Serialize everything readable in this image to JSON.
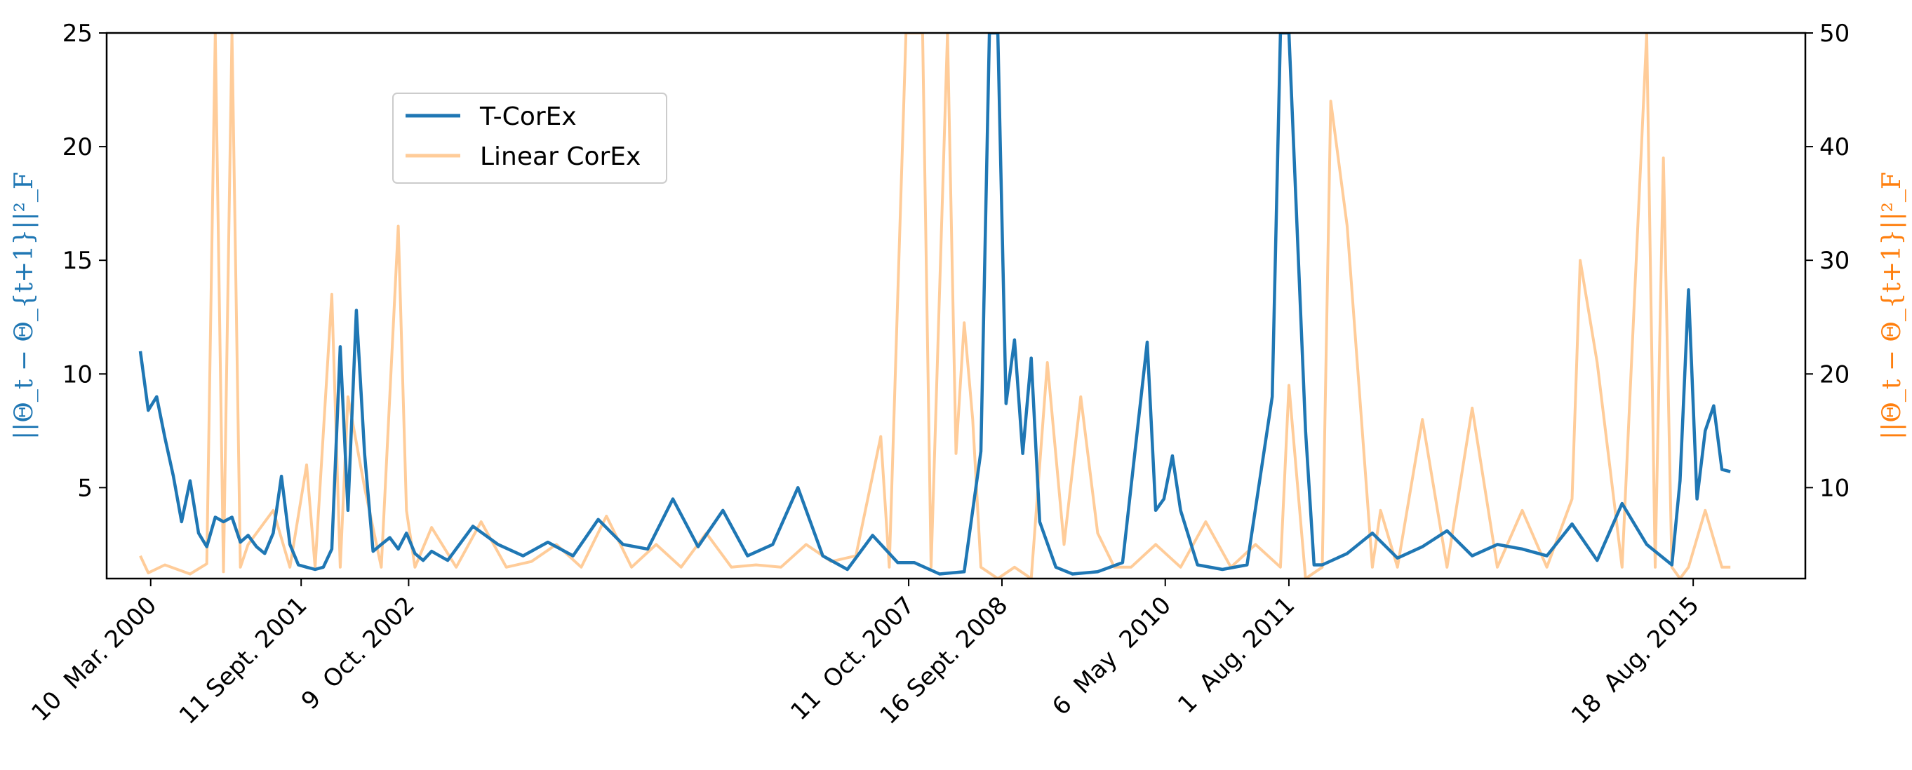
{
  "chart_data": {
    "type": "line",
    "xaxis_kind": "date",
    "xlim": [
      "1999-10-01",
      "2016-10-01"
    ],
    "x_ticks": [
      {
        "date": "2000-03-10",
        "label": "10  Mar. 2000"
      },
      {
        "date": "2001-09-11",
        "label": "11 Sept. 2001"
      },
      {
        "date": "2002-10-09",
        "label": "9  Oct. 2002"
      },
      {
        "date": "2007-10-11",
        "label": "11  Oct. 2007"
      },
      {
        "date": "2008-09-16",
        "label": "16 Sept. 2008"
      },
      {
        "date": "2010-05-06",
        "label": "6  May  2010"
      },
      {
        "date": "2011-08-01",
        "label": "1  Aug. 2011"
      },
      {
        "date": "2015-08-18",
        "label": "18  Aug. 2015"
      }
    ],
    "y_left": {
      "label": "||Θ_t − Θ_{t+1}||²_F",
      "ylim": [
        1,
        25
      ],
      "ticks": [
        5,
        10,
        15,
        20,
        25
      ],
      "color": "#1f77b4"
    },
    "y_right": {
      "label": "||Θ_t − Θ_{t+1}||²_F",
      "ylim": [
        2,
        50
      ],
      "ticks": [
        10,
        20,
        30,
        40,
        50
      ],
      "color": "#ff7f0e"
    },
    "grid": false,
    "legend_placement": "upper-left",
    "series": [
      {
        "name": "T-CorEx",
        "axis": "left",
        "color": "#1f77b4",
        "x": [
          "2000-02-01",
          "2000-03-01",
          "2000-04-01",
          "2000-05-01",
          "2000-06-01",
          "2000-07-01",
          "2000-08-01",
          "2000-09-01",
          "2000-10-01",
          "2000-11-01",
          "2000-12-01",
          "2001-01-01",
          "2001-02-01",
          "2001-03-01",
          "2001-04-01",
          "2001-05-01",
          "2001-06-01",
          "2001-07-01",
          "2001-08-01",
          "2001-09-01",
          "2001-10-01",
          "2001-11-01",
          "2001-12-01",
          "2002-01-01",
          "2002-02-01",
          "2002-03-01",
          "2002-04-01",
          "2002-05-01",
          "2002-06-01",
          "2002-07-01",
          "2002-08-01",
          "2002-09-01",
          "2002-10-01",
          "2002-11-01",
          "2002-12-01",
          "2003-01-01",
          "2003-03-01",
          "2003-06-01",
          "2003-09-01",
          "2003-12-01",
          "2004-03-01",
          "2004-06-01",
          "2004-09-01",
          "2004-12-01",
          "2005-03-01",
          "2005-06-01",
          "2005-09-01",
          "2005-12-01",
          "2006-03-01",
          "2006-06-01",
          "2006-09-01",
          "2006-12-01",
          "2007-03-01",
          "2007-06-01",
          "2007-09-01",
          "2007-11-01",
          "2008-02-01",
          "2008-05-01",
          "2008-07-01",
          "2008-08-01",
          "2008-09-01",
          "2008-10-01",
          "2008-11-01",
          "2008-12-01",
          "2009-01-01",
          "2009-02-01",
          "2009-04-01",
          "2009-06-01",
          "2009-09-01",
          "2009-12-01",
          "2010-03-01",
          "2010-04-01",
          "2010-05-01",
          "2010-06-01",
          "2010-07-01",
          "2010-09-01",
          "2010-12-01",
          "2011-03-01",
          "2011-06-01",
          "2011-07-01",
          "2011-08-01",
          "2011-10-01",
          "2011-11-01",
          "2011-12-01",
          "2012-03-01",
          "2012-06-01",
          "2012-09-01",
          "2012-12-01",
          "2013-03-01",
          "2013-06-01",
          "2013-09-01",
          "2013-12-01",
          "2014-03-01",
          "2014-06-01",
          "2014-09-01",
          "2014-12-01",
          "2015-03-01",
          "2015-06-01",
          "2015-07-01",
          "2015-08-01",
          "2015-09-01",
          "2015-10-01",
          "2015-11-01",
          "2015-12-01",
          "2016-01-01"
        ],
        "y": [
          11.0,
          8.4,
          9.0,
          7.2,
          5.5,
          3.5,
          5.3,
          3.0,
          2.4,
          3.7,
          3.5,
          3.7,
          2.6,
          2.9,
          2.4,
          2.1,
          3.0,
          5.5,
          2.5,
          1.6,
          1.5,
          1.4,
          1.5,
          2.3,
          11.2,
          4.0,
          12.8,
          6.5,
          2.2,
          2.5,
          2.8,
          2.3,
          3.0,
          2.1,
          1.8,
          2.2,
          1.8,
          3.3,
          2.5,
          2.0,
          2.6,
          2.0,
          3.6,
          2.5,
          2.3,
          4.5,
          2.4,
          4.0,
          2.0,
          2.5,
          5.0,
          2.0,
          1.4,
          2.9,
          1.7,
          1.7,
          1.2,
          1.3,
          6.6,
          25.0,
          25.0,
          8.7,
          11.5,
          6.5,
          10.7,
          3.5,
          1.5,
          1.2,
          1.3,
          1.7,
          11.4,
          4.0,
          4.5,
          6.4,
          4.0,
          1.6,
          1.4,
          1.6,
          9.0,
          25.0,
          25.0,
          7.5,
          1.6,
          1.6,
          2.1,
          3.0,
          1.9,
          2.4,
          3.1,
          2.0,
          2.5,
          2.3,
          2.0,
          3.4,
          1.8,
          4.3,
          2.5,
          1.6,
          5.3,
          13.7,
          4.5,
          7.5,
          8.6,
          5.8,
          5.7
        ]
      },
      {
        "name": "Linear CorEx",
        "axis": "right",
        "color": "#ffcc99",
        "x": [
          "2000-02-01",
          "2000-03-01",
          "2000-05-01",
          "2000-08-01",
          "2000-10-01",
          "2000-11-01",
          "2000-12-01",
          "2001-01-01",
          "2001-02-01",
          "2001-03-01",
          "2001-06-01",
          "2001-08-01",
          "2001-10-01",
          "2001-11-01",
          "2002-01-01",
          "2002-02-01",
          "2002-03-01",
          "2002-05-01",
          "2002-07-01",
          "2002-09-01",
          "2002-10-01",
          "2002-11-01",
          "2003-01-01",
          "2003-04-01",
          "2003-07-01",
          "2003-10-01",
          "2004-01-01",
          "2004-04-01",
          "2004-07-01",
          "2004-10-01",
          "2005-01-01",
          "2005-04-01",
          "2005-07-01",
          "2005-10-01",
          "2006-01-01",
          "2006-04-01",
          "2006-07-01",
          "2006-10-01",
          "2007-01-01",
          "2007-04-01",
          "2007-07-01",
          "2007-08-01",
          "2007-10-01",
          "2007-12-01",
          "2008-01-01",
          "2008-03-01",
          "2008-04-01",
          "2008-05-01",
          "2008-06-01",
          "2008-07-01",
          "2008-09-01",
          "2008-11-01",
          "2009-01-01",
          "2009-03-01",
          "2009-05-01",
          "2009-07-01",
          "2009-09-01",
          "2009-11-01",
          "2010-01-01",
          "2010-04-01",
          "2010-07-01",
          "2010-10-01",
          "2011-01-01",
          "2011-04-01",
          "2011-07-01",
          "2011-08-01",
          "2011-10-01",
          "2011-12-01",
          "2012-01-01",
          "2012-03-01",
          "2012-06-01",
          "2012-07-01",
          "2012-09-01",
          "2012-12-01",
          "2013-03-01",
          "2013-06-01",
          "2013-09-01",
          "2013-12-01",
          "2014-03-01",
          "2014-06-01",
          "2014-07-01",
          "2014-09-01",
          "2014-12-01",
          "2015-03-01",
          "2015-04-01",
          "2015-05-01",
          "2015-06-01",
          "2015-07-01",
          "2015-08-01",
          "2015-10-01",
          "2015-12-01",
          "2016-01-01"
        ],
        "y": [
          4.0,
          2.5,
          3.2,
          2.4,
          3.3,
          50.0,
          2.6,
          50.0,
          3.0,
          5.0,
          8.0,
          3.0,
          12.0,
          3.0,
          27.0,
          3.0,
          18.0,
          10.0,
          3.0,
          33.0,
          8.0,
          3.0,
          6.5,
          3.0,
          7.0,
          3.0,
          3.5,
          5.0,
          3.0,
          7.5,
          3.0,
          5.0,
          3.0,
          6.0,
          3.0,
          3.2,
          3.0,
          5.0,
          3.5,
          4.0,
          14.5,
          3.0,
          50.0,
          50.0,
          3.0,
          50.0,
          13.0,
          24.5,
          16.0,
          3.0,
          2.0,
          3.0,
          2.0,
          21.0,
          5.0,
          18.0,
          6.0,
          3.0,
          3.0,
          5.0,
          3.0,
          7.0,
          3.0,
          5.0,
          3.0,
          19.0,
          2.0,
          3.0,
          44.0,
          33.0,
          3.0,
          8.0,
          3.0,
          16.0,
          3.0,
          17.0,
          3.0,
          8.0,
          3.0,
          9.0,
          30.0,
          21.0,
          3.0,
          50.0,
          3.0,
          39.0,
          3.0,
          2.0,
          3.0,
          8.0,
          3.0,
          3.0
        ]
      }
    ]
  }
}
